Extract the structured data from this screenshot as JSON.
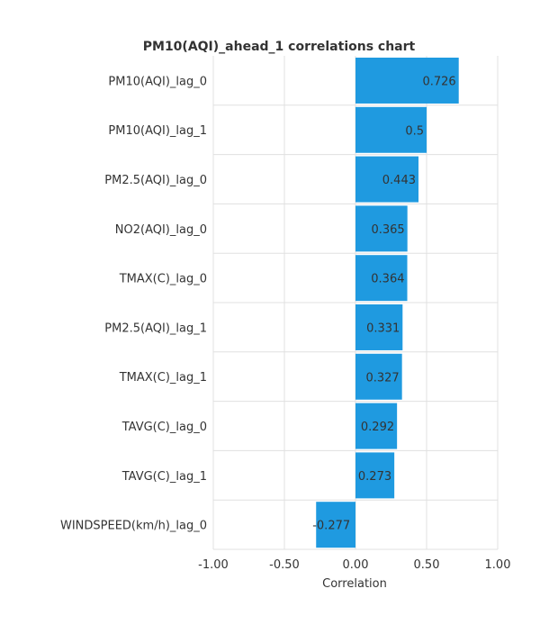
{
  "chart_data": {
    "type": "bar",
    "orientation": "horizontal",
    "title": "PM10(AQI)_ahead_1 correlations chart",
    "xlabel": "Correlation",
    "ylabel": "",
    "xlim": [
      -1.0,
      1.0
    ],
    "xticks": [
      -1.0,
      -0.5,
      0.0,
      0.5,
      1.0
    ],
    "xtick_labels": [
      "-1.00",
      "-0.50",
      "0.00",
      "0.50",
      "1.00"
    ],
    "grid": true,
    "categories": [
      "PM10(AQI)_lag_0",
      "PM10(AQI)_lag_1",
      "PM2.5(AQI)_lag_0",
      "NO2(AQI)_lag_0",
      "TMAX(C)_lag_0",
      "PM2.5(AQI)_lag_1",
      "TMAX(C)_lag_1",
      "TAVG(C)_lag_0",
      "TAVG(C)_lag_1",
      "WINDSPEED(km/h)_lag_0"
    ],
    "values": [
      0.726,
      0.5,
      0.443,
      0.365,
      0.364,
      0.331,
      0.327,
      0.292,
      0.273,
      -0.277
    ],
    "value_labels": [
      "0.726",
      "0.5",
      "0.443",
      "0.365",
      "0.364",
      "0.331",
      "0.327",
      "0.292",
      "0.273",
      "-0.277"
    ],
    "bar_color": "#1f9ae0",
    "grid_color": "#e0e0e0",
    "text_color": "#333333"
  }
}
